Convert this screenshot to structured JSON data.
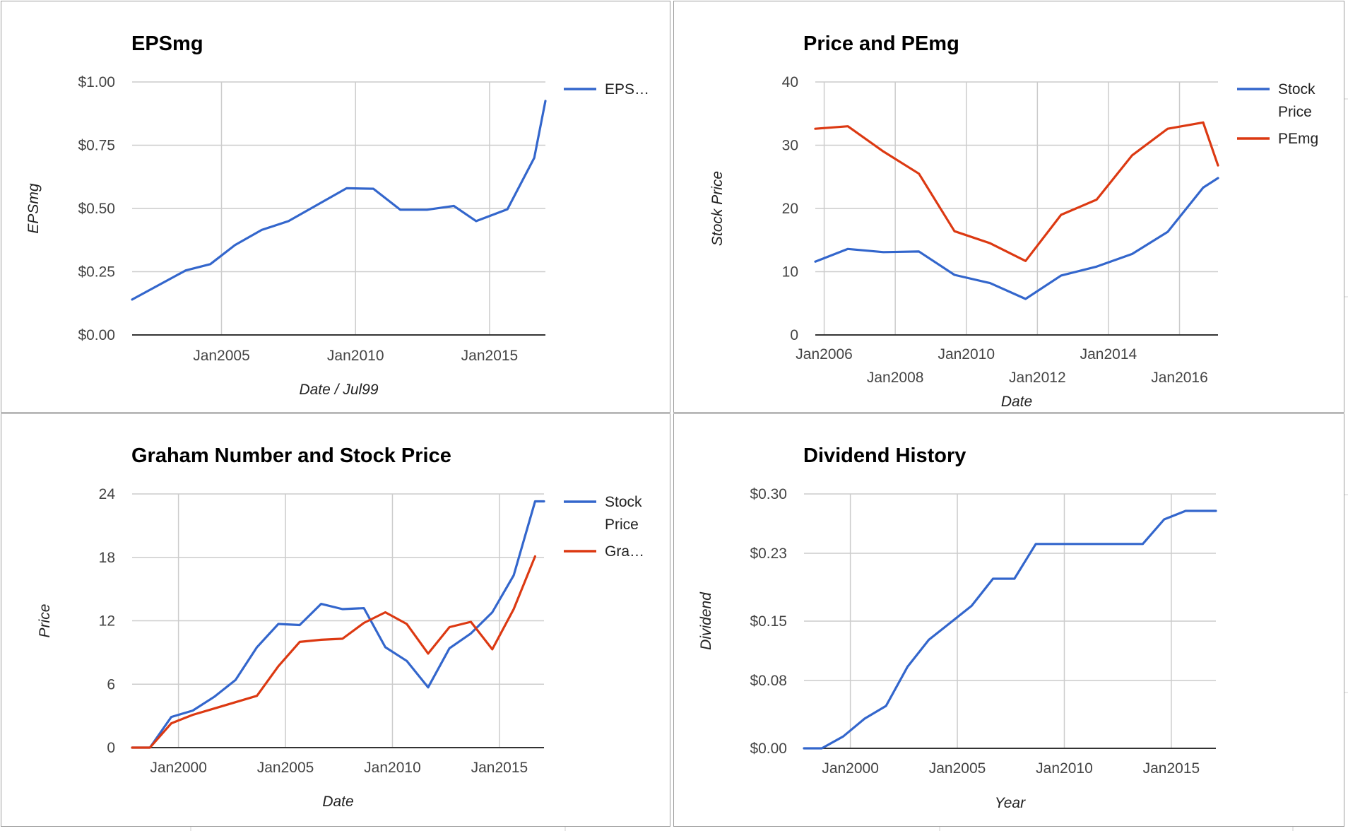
{
  "chart_data": [
    {
      "type": "line",
      "title": "EPSmg",
      "xlabel": "Date / Jul99",
      "ylabel": "EPSmg",
      "x_type": "date",
      "xlim": [
        "2001-09",
        "2017-02"
      ],
      "ylim": [
        0,
        1
      ],
      "yticks": [
        "$0.00",
        "$0.25",
        "$0.50",
        "$0.75",
        "$1.00"
      ],
      "xticks": [
        "Jan2005",
        "Jan2010",
        "Jan2015"
      ],
      "grid": true,
      "legend": "right",
      "series": [
        {
          "name": "EPS…",
          "color": "#3366cc",
          "points": [
            [
              "2001-09",
              0.14
            ],
            [
              "2003-09",
              0.255
            ],
            [
              "2004-08",
              0.28
            ],
            [
              "2005-07",
              0.355
            ],
            [
              "2006-07",
              0.415
            ],
            [
              "2007-07",
              0.45
            ],
            [
              "2009-09",
              0.58
            ],
            [
              "2010-09",
              0.578
            ],
            [
              "2011-09",
              0.495
            ],
            [
              "2012-09",
              0.495
            ],
            [
              "2013-09",
              0.51
            ],
            [
              "2014-07",
              0.45
            ],
            [
              "2015-09",
              0.497
            ],
            [
              "2016-09",
              0.7
            ],
            [
              "2017-02",
              0.925
            ]
          ]
        }
      ]
    },
    {
      "type": "line",
      "title": "Price and PEmg",
      "xlabel": "Date",
      "ylabel": "Stock Price",
      "x_type": "date",
      "xlim": [
        "2005-10",
        "2017-02"
      ],
      "ylim": [
        0,
        40
      ],
      "yticks": [
        "0",
        "10",
        "20",
        "30",
        "40"
      ],
      "xticks": [
        "Jan2006",
        "Jan2008",
        "Jan2010",
        "Jan2012",
        "Jan2014",
        "Jan2016"
      ],
      "grid": true,
      "legend": "right",
      "series": [
        {
          "name": "Stock Price",
          "color": "#3366cc",
          "points": [
            [
              "2005-10",
              11.6
            ],
            [
              "2006-09",
              13.6
            ],
            [
              "2007-09",
              13.1
            ],
            [
              "2008-09",
              13.2
            ],
            [
              "2009-09",
              9.5
            ],
            [
              "2010-09",
              8.2
            ],
            [
              "2011-09",
              5.7
            ],
            [
              "2012-09",
              9.4
            ],
            [
              "2013-09",
              10.8
            ],
            [
              "2014-09",
              12.8
            ],
            [
              "2015-09",
              16.3
            ],
            [
              "2016-09",
              23.3
            ],
            [
              "2017-02",
              24.8
            ]
          ]
        },
        {
          "name": "PEmg",
          "color": "#dc3912",
          "points": [
            [
              "2005-10",
              32.6
            ],
            [
              "2006-09",
              33.0
            ],
            [
              "2007-09",
              29.0
            ],
            [
              "2008-09",
              25.5
            ],
            [
              "2009-09",
              16.4
            ],
            [
              "2010-09",
              14.5
            ],
            [
              "2011-09",
              11.7
            ],
            [
              "2012-09",
              19.0
            ],
            [
              "2013-09",
              21.4
            ],
            [
              "2014-09",
              28.4
            ],
            [
              "2015-09",
              32.6
            ],
            [
              "2016-09",
              33.6
            ],
            [
              "2017-02",
              26.8
            ]
          ]
        }
      ]
    },
    {
      "type": "line",
      "title": "Graham Number and Stock Price",
      "xlabel": "Date",
      "ylabel": "Price",
      "x_type": "date",
      "xlim": [
        "1997-11",
        "2017-02"
      ],
      "ylim": [
        0,
        24
      ],
      "yticks": [
        "0",
        "6",
        "12",
        "18",
        "24"
      ],
      "xticks": [
        "Jan2000",
        "Jan2005",
        "Jan2010",
        "Jan2015"
      ],
      "grid": true,
      "legend": "right",
      "series": [
        {
          "name": "Stock Price",
          "color": "#3366cc",
          "points": [
            [
              "1997-11",
              0
            ],
            [
              "1998-09",
              0
            ],
            [
              "1999-09",
              2.9
            ],
            [
              "2000-09",
              3.5
            ],
            [
              "2001-09",
              4.8
            ],
            [
              "2002-09",
              6.4
            ],
            [
              "2003-09",
              9.5
            ],
            [
              "2004-09",
              11.7
            ],
            [
              "2005-09",
              11.6
            ],
            [
              "2006-09",
              13.6
            ],
            [
              "2007-09",
              13.1
            ],
            [
              "2008-09",
              13.2
            ],
            [
              "2009-09",
              9.5
            ],
            [
              "2010-09",
              8.2
            ],
            [
              "2011-09",
              5.7
            ],
            [
              "2012-09",
              9.4
            ],
            [
              "2013-09",
              10.8
            ],
            [
              "2014-09",
              12.8
            ],
            [
              "2015-09",
              16.3
            ],
            [
              "2016-09",
              23.3
            ],
            [
              "2017-02",
              23.3
            ]
          ]
        },
        {
          "name": "Gra…",
          "color": "#dc3912",
          "points": [
            [
              "1997-11",
              0
            ],
            [
              "1998-09",
              0
            ],
            [
              "1999-09",
              2.3
            ],
            [
              "2000-09",
              3.1
            ],
            [
              "2001-09",
              3.7
            ],
            [
              "2002-09",
              4.3
            ],
            [
              "2003-09",
              4.9
            ],
            [
              "2004-09",
              7.7
            ],
            [
              "2005-09",
              10.0
            ],
            [
              "2006-09",
              10.2
            ],
            [
              "2007-09",
              10.3
            ],
            [
              "2008-09",
              11.8
            ],
            [
              "2009-09",
              12.8
            ],
            [
              "2010-09",
              11.7
            ],
            [
              "2011-09",
              8.9
            ],
            [
              "2012-09",
              11.4
            ],
            [
              "2013-09",
              11.9
            ],
            [
              "2014-09",
              9.3
            ],
            [
              "2015-09",
              13.1
            ],
            [
              "2016-09",
              18.1
            ]
          ]
        }
      ]
    },
    {
      "type": "line",
      "title": "Dividend History",
      "xlabel": "Year",
      "ylabel": "Dividend",
      "x_type": "date",
      "xlim": [
        "1997-11",
        "2017-02"
      ],
      "ylim": [
        0,
        0.3
      ],
      "yticks": [
        "$0.00",
        "$0.08",
        "$0.15",
        "$0.23",
        "$0.30"
      ],
      "xticks": [
        "Jan2000",
        "Jan2005",
        "Jan2010",
        "Jan2015"
      ],
      "grid": true,
      "legend": "none",
      "series": [
        {
          "color": "#3366cc",
          "points": [
            [
              "1997-11",
              0
            ],
            [
              "1998-09",
              0
            ],
            [
              "1999-09",
              0.014
            ],
            [
              "2000-09",
              0.035
            ],
            [
              "2001-09",
              0.05
            ],
            [
              "2002-09",
              0.096
            ],
            [
              "2003-09",
              0.128
            ],
            [
              "2004-09",
              0.148
            ],
            [
              "2005-09",
              0.168
            ],
            [
              "2006-09",
              0.2
            ],
            [
              "2007-09",
              0.2
            ],
            [
              "2008-09",
              0.241
            ],
            [
              "2009-09",
              0.241
            ],
            [
              "2010-09",
              0.241
            ],
            [
              "2011-09",
              0.241
            ],
            [
              "2012-09",
              0.241
            ],
            [
              "2013-09",
              0.241
            ],
            [
              "2014-09",
              0.27
            ],
            [
              "2015-09",
              0.28
            ],
            [
              "2016-09",
              0.28
            ],
            [
              "2017-02",
              0.28
            ]
          ]
        }
      ]
    }
  ]
}
